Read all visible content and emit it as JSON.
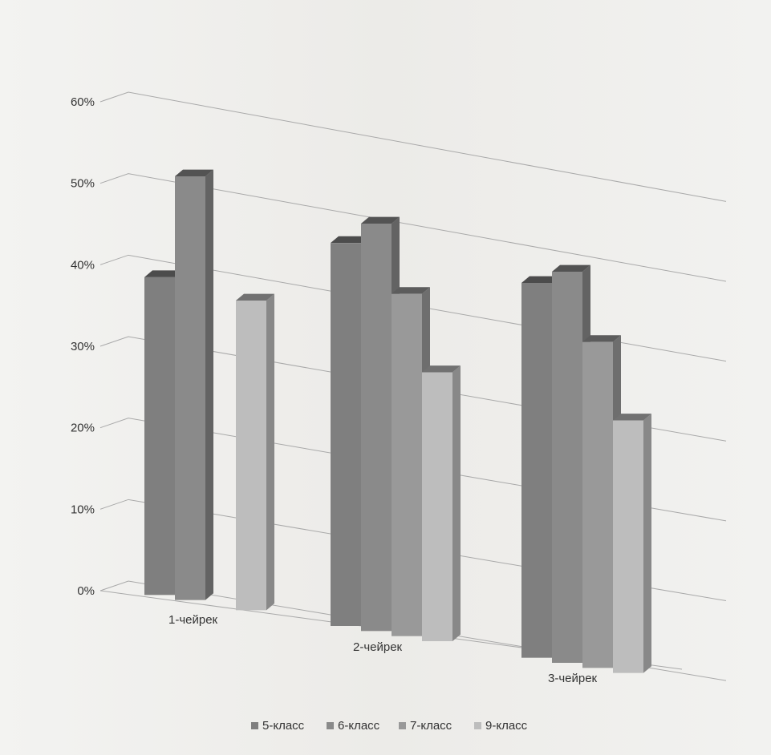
{
  "chart_data": {
    "type": "bar",
    "title": "",
    "xlabel": "",
    "ylabel": "",
    "ylim": [
      0,
      0.6
    ],
    "y_ticks": [
      "0%",
      "10%",
      "20%",
      "30%",
      "40%",
      "50%",
      "60%"
    ],
    "categories": [
      "1-чейрек",
      "2-чейрек",
      "3-чейрек"
    ],
    "series": [
      {
        "name": "5-класс",
        "values": [
          0.39,
          0.47,
          0.46
        ]
      },
      {
        "name": "6-класс",
        "values": [
          0.52,
          0.5,
          0.48
        ]
      },
      {
        "name": "7-класс",
        "values": [
          null,
          0.42,
          0.4
        ]
      },
      {
        "name": "9-класс",
        "values": [
          0.38,
          0.33,
          0.31
        ]
      }
    ],
    "colors": {
      "5-класс": "#7f7f7f",
      "6-класс": "#8a8a8a",
      "7-класс": "#999999",
      "9-класс": "#bdbdbd"
    },
    "grid": true,
    "legend_position": "bottom"
  }
}
